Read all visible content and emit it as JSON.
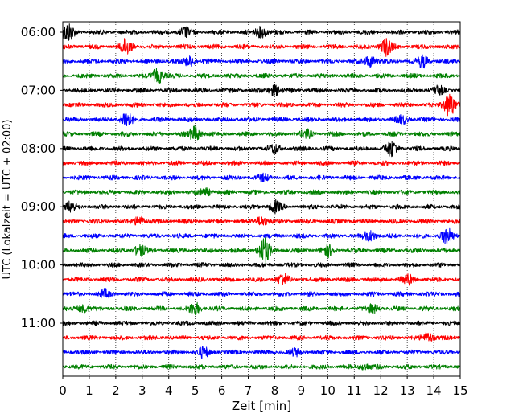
{
  "chart_data": {
    "type": "line",
    "title": "",
    "xlabel": "Zeit  [min]",
    "ylabel": "UTC (Lokalzeit = UTC + 02:00)",
    "xlim": [
      0,
      15
    ],
    "x_ticks": [
      "0",
      "1",
      "2",
      "3",
      "4",
      "5",
      "6",
      "7",
      "8",
      "9",
      "10",
      "11",
      "12",
      "13",
      "14",
      "15"
    ],
    "y_tick_labels": [
      "06:00",
      "07:00",
      "08:00",
      "09:00",
      "10:00",
      "11:00"
    ],
    "grid": "vertical dotted",
    "trace_start": "06:00",
    "trace_interval_min": 15,
    "trace_count": 24,
    "colors": [
      "#000000",
      "#ff0000",
      "#0000ff",
      "#008000"
    ],
    "events": [
      {
        "row": 0,
        "x": 0.2,
        "amp": 1.0
      },
      {
        "row": 0,
        "x": 4.6,
        "amp": 0.5
      },
      {
        "row": 0,
        "x": 7.5,
        "amp": 0.6
      },
      {
        "row": 1,
        "x": 2.4,
        "amp": 0.8
      },
      {
        "row": 1,
        "x": 12.2,
        "amp": 0.9
      },
      {
        "row": 2,
        "x": 4.8,
        "amp": 0.5
      },
      {
        "row": 2,
        "x": 11.6,
        "amp": 0.6
      },
      {
        "row": 2,
        "x": 13.6,
        "amp": 0.6
      },
      {
        "row": 3,
        "x": 3.6,
        "amp": 0.8
      },
      {
        "row": 4,
        "x": 8.0,
        "amp": 0.6
      },
      {
        "row": 4,
        "x": 14.2,
        "amp": 0.4
      },
      {
        "row": 5,
        "x": 14.6,
        "amp": 1.3
      },
      {
        "row": 6,
        "x": 2.4,
        "amp": 0.9
      },
      {
        "row": 6,
        "x": 12.8,
        "amp": 0.4
      },
      {
        "row": 7,
        "x": 5.0,
        "amp": 0.8
      },
      {
        "row": 7,
        "x": 9.2,
        "amp": 0.4
      },
      {
        "row": 8,
        "x": 8.0,
        "amp": 0.4
      },
      {
        "row": 8,
        "x": 12.4,
        "amp": 0.8
      },
      {
        "row": 10,
        "x": 7.6,
        "amp": 0.3
      },
      {
        "row": 11,
        "x": 5.4,
        "amp": 0.4
      },
      {
        "row": 12,
        "x": 0.3,
        "amp": 0.5
      },
      {
        "row": 12,
        "x": 8.0,
        "amp": 0.6
      },
      {
        "row": 13,
        "x": 2.9,
        "amp": 0.5
      },
      {
        "row": 13,
        "x": 7.5,
        "amp": 0.5
      },
      {
        "row": 14,
        "x": 11.6,
        "amp": 0.6
      },
      {
        "row": 14,
        "x": 14.5,
        "amp": 0.8
      },
      {
        "row": 15,
        "x": 2.9,
        "amp": 0.6
      },
      {
        "row": 15,
        "x": 7.6,
        "amp": 1.4
      },
      {
        "row": 15,
        "x": 10.0,
        "amp": 0.6
      },
      {
        "row": 17,
        "x": 8.3,
        "amp": 0.6
      },
      {
        "row": 17,
        "x": 13.0,
        "amp": 0.5
      },
      {
        "row": 18,
        "x": 1.6,
        "amp": 0.4
      },
      {
        "row": 19,
        "x": 0.8,
        "amp": 0.4
      },
      {
        "row": 19,
        "x": 5.0,
        "amp": 0.6
      },
      {
        "row": 19,
        "x": 11.7,
        "amp": 0.4
      },
      {
        "row": 21,
        "x": 13.8,
        "amp": 0.5
      },
      {
        "row": 22,
        "x": 5.3,
        "amp": 0.5
      },
      {
        "row": 22,
        "x": 8.8,
        "amp": 0.3
      },
      {
        "row": 23,
        "x": 11.4,
        "amp": 0.3
      }
    ]
  }
}
